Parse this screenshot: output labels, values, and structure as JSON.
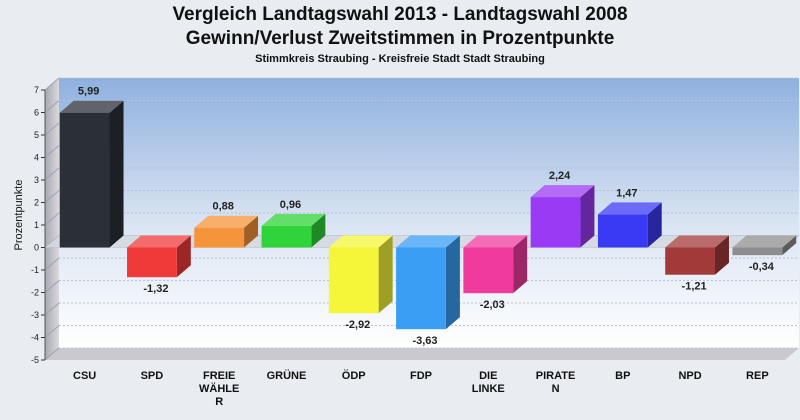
{
  "chart_data": {
    "type": "bar",
    "title": "Vergleich Landtagswahl 2013 - Landtagswahl 2008",
    "subtitle_line": "Gewinn/Verlust Zweitstimmen in Prozentpunkte",
    "subtitle": "Stimmkreis Straubing - Kreisfreie Stadt Stadt Straubing",
    "xlabel": "",
    "ylabel": "Prozentpunkte",
    "ylim": [
      -5,
      7
    ],
    "yticks": [
      "7",
      "6",
      "5",
      "4",
      "3",
      "2",
      "1",
      "0",
      "-1",
      "-2",
      "-3",
      "-4",
      "-5"
    ],
    "grid": true,
    "categories": [
      [
        "CSU"
      ],
      [
        "SPD"
      ],
      [
        "FREIE",
        "WÄHLE",
        "R"
      ],
      [
        "GRÜNE"
      ],
      [
        "ÖDP"
      ],
      [
        "FDP"
      ],
      [
        "DIE",
        "LINKE"
      ],
      [
        "PIRATE",
        "N"
      ],
      [
        "BP"
      ],
      [
        "NPD"
      ],
      [
        "REP"
      ]
    ],
    "values": [
      5.99,
      -1.32,
      0.88,
      0.96,
      -2.92,
      -3.63,
      -2.03,
      2.24,
      1.47,
      -1.21,
      -0.34
    ],
    "data_labels": [
      "5,99",
      "-1,32",
      "0,88",
      "0,96",
      "-2,92",
      "-3,63",
      "-2,03",
      "2,24",
      "1,47",
      "-1,21",
      "-0,34"
    ],
    "colors": [
      "#2b2f38",
      "#f03a3a",
      "#f5943a",
      "#2fd33a",
      "#f5f53a",
      "#3a9ef5",
      "#f03a9e",
      "#9a3af5",
      "#3a3af5",
      "#a33a3a",
      "#8d8d8d"
    ]
  }
}
